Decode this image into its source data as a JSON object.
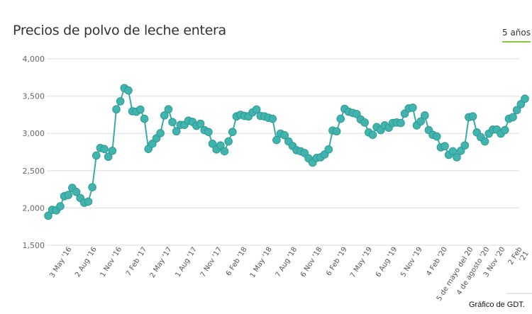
{
  "header": {
    "title": "Precios de polvo de leche entera",
    "range_button": "5 años"
  },
  "footer": {
    "credit": "Gráfico de GDT."
  },
  "colors": {
    "line": "#3aaba6",
    "marker": "#42b4ae",
    "marker_stroke": "#2f9a95",
    "accent": "#8dc63f",
    "grid": "#e8e8e8"
  },
  "chart_data": {
    "type": "line",
    "title": "Precios de polvo de leche entera",
    "xlabel": "",
    "ylabel": "",
    "ylim": [
      1500,
      4000
    ],
    "yticks": [
      1500,
      2000,
      2500,
      3000,
      3500,
      4000
    ],
    "ytick_labels": [
      "1,500",
      "2,000",
      "2,500",
      "3,000",
      "3,500",
      "4,000"
    ],
    "grid": true,
    "markers": true,
    "xtick_labels": [
      "3 May '16",
      "2 Aug '16",
      "1 Nov '16",
      "7 Feb '17",
      "2 May '17",
      "1 Aug '17",
      "7 Nov '17",
      "6 Feb '18",
      "1 May '18",
      "7 Aug '18",
      "6 Nov '18",
      "6 Feb '19",
      "7 May '19",
      "6 Aug '19",
      "5 Nov '19",
      "4 Feb '20",
      "5 de mayo del 20",
      "4 de agosto '20",
      "3 Nov '20",
      "2 Feb '21"
    ],
    "values": [
      1896,
      1975,
      1968,
      2022,
      2158,
      2174,
      2269,
      2215,
      2133,
      2070,
      2085,
      2278,
      2703,
      2804,
      2791,
      2687,
      2766,
      3323,
      3430,
      3608,
      3576,
      3297,
      3291,
      3320,
      3196,
      2791,
      2861,
      2934,
      3003,
      3241,
      3323,
      3152,
      3028,
      3114,
      3114,
      3171,
      3155,
      3101,
      3130,
      3044,
      3019,
      2861,
      2785,
      2839,
      2760,
      2892,
      3019,
      3228,
      3250,
      3234,
      3228,
      3282,
      3320,
      3234,
      3228,
      3209,
      3196,
      2911,
      2997,
      2975,
      2892,
      2832,
      2775,
      2760,
      2737,
      2665,
      2608,
      2671,
      2680,
      2718,
      2785,
      3038,
      3028,
      3196,
      3329,
      3291,
      3275,
      3259,
      3187,
      3146,
      3013,
      2981,
      3085,
      3044,
      3108,
      3076,
      3139,
      3146,
      3139,
      3266,
      3335,
      3345,
      3108,
      3161,
      3241,
      3044,
      2981,
      2959,
      2813,
      2829,
      2712,
      2760,
      2680,
      2766,
      2839,
      3218,
      3228,
      3013,
      2949,
      2892,
      2997,
      3051,
      3051,
      2997,
      3044,
      3196,
      3218,
      3313,
      3392,
      3465
    ]
  }
}
